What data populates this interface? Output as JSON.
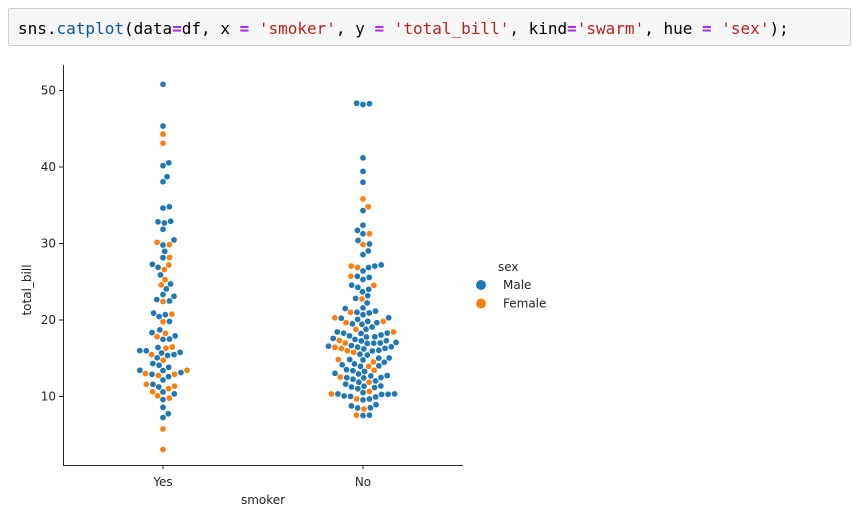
{
  "cell": {
    "code": [
      {
        "t": "sns.",
        "c": "plain"
      },
      {
        "t": "catplot",
        "c": "attr"
      },
      {
        "t": "(data",
        "c": "plain"
      },
      {
        "t": "=",
        "c": "op"
      },
      {
        "t": "df, x ",
        "c": "plain"
      },
      {
        "t": "=",
        "c": "op"
      },
      {
        "t": " ",
        "c": "plain"
      },
      {
        "t": "'smoker'",
        "c": "str"
      },
      {
        "t": ", y ",
        "c": "plain"
      },
      {
        "t": "=",
        "c": "op"
      },
      {
        "t": " ",
        "c": "plain"
      },
      {
        "t": "'total_bill'",
        "c": "str"
      },
      {
        "t": ", kind",
        "c": "plain"
      },
      {
        "t": "=",
        "c": "op"
      },
      {
        "t": "'swarm'",
        "c": "str"
      },
      {
        "t": ", hue ",
        "c": "plain"
      },
      {
        "t": "=",
        "c": "op"
      },
      {
        "t": " ",
        "c": "plain"
      },
      {
        "t": "'sex'",
        "c": "str"
      },
      {
        "t": ");",
        "c": "plain"
      }
    ]
  },
  "colors": {
    "attr": "#0055aa",
    "op": "#aa22ff",
    "str": "#ba2121",
    "plain": "#000000"
  },
  "chart_data": {
    "type": "scatter",
    "kind": "swarm",
    "categories": [
      "Yes",
      "No"
    ],
    "xlabel": "smoker",
    "ylabel": "total_bill",
    "yticks": [
      10,
      20,
      30,
      40,
      50
    ],
    "ylim": [
      0,
      53
    ],
    "grid": false,
    "legend": {
      "title": "sex",
      "placement": "right"
    },
    "series": [
      {
        "name": "Male",
        "color": "#1f77b4",
        "values": {
          "Yes": [
            50.81,
            45.35,
            40.55,
            40.17,
            38.73,
            38.07,
            34.81,
            34.63,
            32.9,
            32.83,
            32.68,
            31.85,
            30.46,
            29.8,
            28.97,
            28.15,
            27.28,
            26.88,
            25.89,
            24.71,
            24.06,
            23.33,
            23.1,
            22.67,
            22.49,
            20.9,
            20.69,
            20.45,
            19.81,
            18.71,
            18.35,
            17.92,
            17.51,
            17.47,
            16.4,
            16.0,
            15.98,
            15.77,
            15.69,
            15.48,
            15.36,
            15.06,
            14.31,
            14.07,
            13.81,
            13.42,
            13.39,
            13.13,
            12.9,
            12.6,
            12.16,
            11.59,
            11.24,
            10.59,
            10.34,
            9.6,
            8.58,
            7.74,
            7.25
          ],
          "No": [
            48.33,
            48.27,
            48.17,
            41.19,
            39.42,
            38.01,
            34.3,
            32.4,
            31.71,
            31.27,
            30.4,
            29.93,
            29.03,
            28.55,
            27.2,
            27.05,
            26.86,
            26.41,
            25.71,
            25.56,
            25.29,
            24.55,
            24.27,
            24.01,
            23.68,
            23.17,
            22.82,
            22.23,
            21.58,
            21.5,
            21.16,
            21.01,
            20.92,
            20.69,
            20.29,
            20.23,
            20.08,
            19.82,
            19.65,
            19.49,
            19.44,
            19.08,
            18.78,
            18.43,
            18.29,
            18.28,
            18.24,
            18.04,
            17.92,
            17.81,
            17.78,
            17.59,
            17.46,
            17.29,
            17.26,
            17.07,
            16.99,
            16.97,
            16.93,
            16.66,
            16.58,
            16.49,
            16.45,
            16.29,
            16.21,
            16.04,
            15.95,
            15.53,
            15.42,
            15.04,
            15.01,
            14.83,
            14.78,
            14.48,
            14.26,
            14.15,
            14.0,
            13.94,
            13.51,
            13.37,
            13.28,
            13.03,
            12.95,
            12.74,
            12.69,
            12.48,
            12.46,
            12.43,
            12.26,
            12.03,
            11.87,
            11.61,
            11.38,
            11.35,
            11.24,
            11.17,
            11.02,
            10.51,
            10.34,
            10.33,
            10.29,
            10.27,
            10.07,
            10.01,
            9.94,
            9.68,
            9.55,
            8.93,
            8.77,
            8.52,
            8.51,
            7.56,
            7.51
          ]
        }
      },
      {
        "name": "Female",
        "color": "#ff7f0e",
        "values": {
          "Yes": [
            44.3,
            43.11,
            30.14,
            29.85,
            28.17,
            27.18,
            26.59,
            25.28,
            24.59,
            22.42,
            20.76,
            19.77,
            18.26,
            17.82,
            16.47,
            16.32,
            15.48,
            14.73,
            13.42,
            13.0,
            12.9,
            12.76,
            11.59,
            11.35,
            11.02,
            10.63,
            10.09,
            9.78,
            5.75,
            3.07
          ],
          "No": [
            35.83,
            34.81,
            31.27,
            29.85,
            27.05,
            26.86,
            25.71,
            24.52,
            22.75,
            21.01,
            20.29,
            19.82,
            19.65,
            18.78,
            18.43,
            17.31,
            16.99,
            16.43,
            16.27,
            15.98,
            15.77,
            14.83,
            14.52,
            13.94,
            13.42,
            12.54,
            11.87,
            10.65,
            10.33,
            9.68,
            8.35,
            7.56
          ]
        }
      }
    ]
  }
}
